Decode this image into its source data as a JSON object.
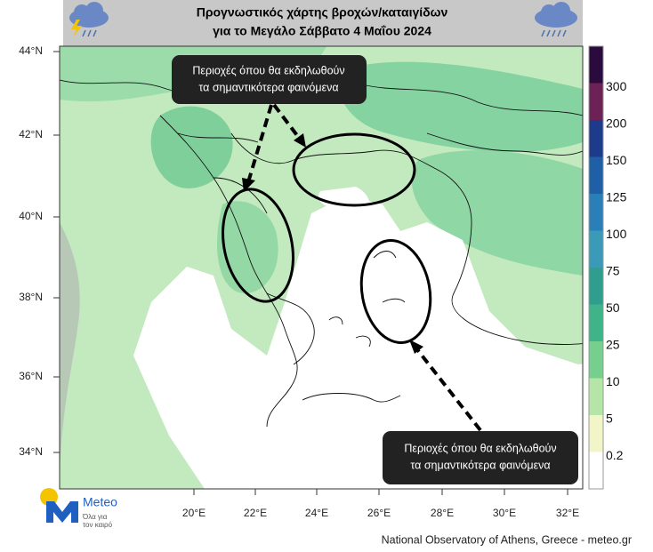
{
  "header": {
    "title_lines": [
      "Προγνωστικός χάρτης βροχών/καταιγίδων",
      "για το Μεγάλο Σάββατο 4 Μαΐου 2024"
    ]
  },
  "map": {
    "lat_labels": [
      "44°N",
      "42°N",
      "40°N",
      "38°N",
      "36°N",
      "34°N"
    ],
    "lon_labels": [
      "20°E",
      "22°E",
      "24°E",
      "26°E",
      "28°E",
      "30°E",
      "32°E"
    ]
  },
  "callouts": [
    {
      "lines": [
        "Περιοχές όπου θα εκδηλωθούν",
        "τα σημαντικότερα φαινόμενα"
      ]
    },
    {
      "lines": [
        "Περιοχές όπου θα εκδηλωθούν",
        "τα σημαντικότερα φαινόμενα"
      ]
    }
  ],
  "colorbar": {
    "labels": [
      300,
      200,
      150,
      125,
      100,
      75,
      50,
      25,
      10,
      5,
      0.2
    ],
    "colors": [
      "#2b0a3d",
      "#6d2256",
      "#1e3a8a",
      "#1f5fa6",
      "#2a7fb8",
      "#3a9ab8",
      "#2f9e8f",
      "#3fb38a",
      "#76cf8e",
      "#b5e6a8",
      "#f2f5c8",
      "#ffffff"
    ]
  },
  "logo": {
    "name": "Meteo",
    "tagline": [
      "Όλα για",
      "τον καιρό"
    ]
  },
  "footer": "National Observatory of Athens, Greece - meteo.gr"
}
